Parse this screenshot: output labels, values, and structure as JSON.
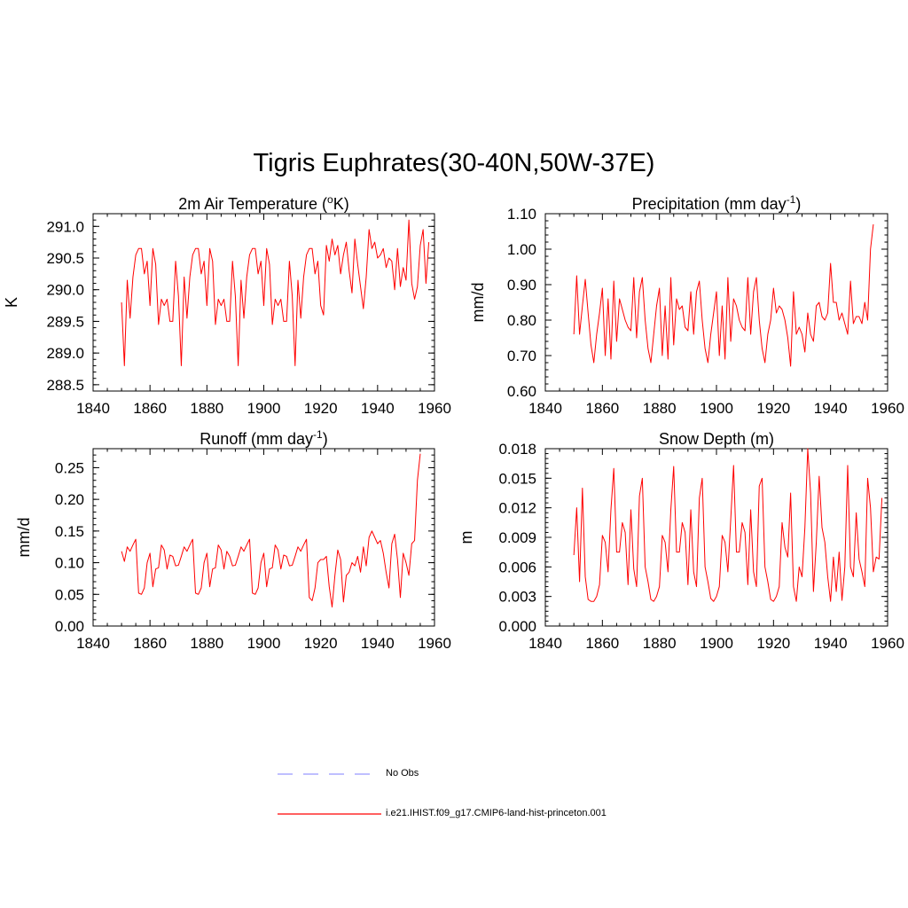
{
  "title": "Tigris Euphrates(30-40N,50W-37E)",
  "colors": {
    "model": "#ff0000",
    "obs": "#9999ff",
    "axis": "#000000"
  },
  "legend": [
    {
      "label": "No Obs",
      "style": "dashed",
      "color": "#9999ff"
    },
    {
      "label": "i.e21.IHIST.f09_g17.CMIP6-land-hist-princeton.001",
      "style": "solid",
      "color": "#ff0000"
    }
  ],
  "chart_data": [
    {
      "type": "line",
      "title": {
        "main": "2m Air Temperature (",
        "sup": "o",
        "tail": "K)"
      },
      "ylabel": "K",
      "xlim": [
        1840,
        1960
      ],
      "ylim": [
        288.4,
        291.2
      ],
      "x_ticks": [
        "1840",
        "1860",
        "1880",
        "1900",
        "1920",
        "1940",
        "1960"
      ],
      "x_tick_values": [
        1840,
        1860,
        1880,
        1900,
        1920,
        1940,
        1960
      ],
      "y_ticks": [
        "288.5",
        "289.0",
        "289.5",
        "290.0",
        "290.5",
        "291.0"
      ],
      "y_tick_values": [
        288.5,
        289.0,
        289.5,
        290.0,
        290.5,
        291.0
      ],
      "y_minor_step": 0.1,
      "x": {
        "start": 1850,
        "step": 1
      },
      "series": [
        {
          "color": "#ff0000",
          "values": [
            289.8,
            288.8,
            290.15,
            289.55,
            290.2,
            290.55,
            290.65,
            290.65,
            290.25,
            290.45,
            289.75,
            290.65,
            290.4,
            289.45,
            289.85,
            289.75,
            289.85,
            289.5,
            289.5,
            290.45,
            289.9,
            288.8,
            290.2,
            289.55,
            290.2,
            290.55,
            290.65,
            290.65,
            290.25,
            290.45,
            289.75,
            290.65,
            290.45,
            289.45,
            289.85,
            289.75,
            289.85,
            289.5,
            289.5,
            290.45,
            289.9,
            288.8,
            290.15,
            289.55,
            290.2,
            290.55,
            290.65,
            290.65,
            290.25,
            290.45,
            289.75,
            290.65,
            290.4,
            289.45,
            289.85,
            289.75,
            289.85,
            289.5,
            289.5,
            290.45,
            289.9,
            288.8,
            290.15,
            289.55,
            290.2,
            290.55,
            290.65,
            290.65,
            290.25,
            290.45,
            289.75,
            289.6,
            290.7,
            290.45,
            290.8,
            290.55,
            290.7,
            290.25,
            290.55,
            290.75,
            290.3,
            289.95,
            290.8,
            290.4,
            290.05,
            289.7,
            290.2,
            290.95,
            290.65,
            290.75,
            290.5,
            290.55,
            290.65,
            290.35,
            290.5,
            290.45,
            290.0,
            290.65,
            290.05,
            290.35,
            290.15,
            291.1,
            290.1,
            289.85,
            290.05,
            290.7,
            290.95,
            290.1,
            290.75
          ]
        }
      ]
    },
    {
      "type": "line",
      "title": {
        "main": "Precipitation (mm day",
        "sup": "-1",
        "tail": ")"
      },
      "ylabel": "mm/d",
      "xlim": [
        1840,
        1960
      ],
      "ylim": [
        0.6,
        1.1
      ],
      "x_ticks": [
        "1840",
        "1860",
        "1880",
        "1900",
        "1920",
        "1940",
        "1960"
      ],
      "x_tick_values": [
        1840,
        1860,
        1880,
        1900,
        1920,
        1940,
        1960
      ],
      "y_ticks": [
        "0.60",
        "0.70",
        "0.80",
        "0.90",
        "1.00",
        "1.10"
      ],
      "y_tick_values": [
        0.6,
        0.7,
        0.8,
        0.9,
        1.0,
        1.1
      ],
      "y_minor_step": 0.02,
      "x": {
        "start": 1850,
        "step": 1
      },
      "series": [
        {
          "color": "#ff0000",
          "values": [
            0.76,
            0.925,
            0.76,
            0.84,
            0.915,
            0.82,
            0.73,
            0.68,
            0.76,
            0.82,
            0.89,
            0.7,
            0.86,
            0.69,
            0.91,
            0.74,
            0.86,
            0.83,
            0.8,
            0.78,
            0.77,
            0.92,
            0.75,
            0.88,
            0.92,
            0.8,
            0.72,
            0.68,
            0.76,
            0.84,
            0.89,
            0.7,
            0.84,
            0.69,
            0.92,
            0.73,
            0.86,
            0.83,
            0.84,
            0.78,
            0.77,
            0.88,
            0.76,
            0.88,
            0.91,
            0.8,
            0.72,
            0.68,
            0.76,
            0.82,
            0.88,
            0.7,
            0.84,
            0.69,
            0.92,
            0.74,
            0.86,
            0.84,
            0.8,
            0.78,
            0.77,
            0.92,
            0.76,
            0.88,
            0.92,
            0.8,
            0.72,
            0.68,
            0.76,
            0.8,
            0.89,
            0.82,
            0.84,
            0.83,
            0.8,
            0.75,
            0.67,
            0.88,
            0.76,
            0.78,
            0.76,
            0.71,
            0.82,
            0.76,
            0.74,
            0.84,
            0.85,
            0.81,
            0.8,
            0.82,
            0.96,
            0.85,
            0.85,
            0.8,
            0.82,
            0.79,
            0.76,
            0.91,
            0.79,
            0.81,
            0.81,
            0.79,
            0.85,
            0.8,
            1.0,
            1.07
          ]
        }
      ]
    },
    {
      "type": "line",
      "title": {
        "main": "Runoff (mm day",
        "sup": "-1",
        "tail": ")"
      },
      "ylabel": "mm/d",
      "xlim": [
        1840,
        1960
      ],
      "ylim": [
        0.0,
        0.28
      ],
      "x_ticks": [
        "1840",
        "1860",
        "1880",
        "1900",
        "1920",
        "1940",
        "1960"
      ],
      "x_tick_values": [
        1840,
        1860,
        1880,
        1900,
        1920,
        1940,
        1960
      ],
      "y_ticks": [
        "0.00",
        "0.05",
        "0.10",
        "0.15",
        "0.20",
        "0.25"
      ],
      "y_tick_values": [
        0.0,
        0.05,
        0.1,
        0.15,
        0.2,
        0.25
      ],
      "y_minor_step": 0.01,
      "x": {
        "start": 1850,
        "step": 1
      },
      "series": [
        {
          "color": "#ff0000",
          "values": [
            0.118,
            0.102,
            0.125,
            0.118,
            0.128,
            0.137,
            0.052,
            0.05,
            0.06,
            0.1,
            0.115,
            0.062,
            0.09,
            0.092,
            0.128,
            0.12,
            0.09,
            0.112,
            0.11,
            0.095,
            0.096,
            0.11,
            0.125,
            0.118,
            0.128,
            0.137,
            0.052,
            0.05,
            0.06,
            0.1,
            0.115,
            0.062,
            0.09,
            0.092,
            0.128,
            0.12,
            0.09,
            0.118,
            0.11,
            0.095,
            0.096,
            0.11,
            0.125,
            0.118,
            0.128,
            0.137,
            0.052,
            0.05,
            0.06,
            0.1,
            0.115,
            0.062,
            0.09,
            0.092,
            0.128,
            0.12,
            0.09,
            0.112,
            0.11,
            0.095,
            0.096,
            0.11,
            0.125,
            0.118,
            0.128,
            0.137,
            0.045,
            0.04,
            0.06,
            0.1,
            0.105,
            0.105,
            0.11,
            0.062,
            0.03,
            0.08,
            0.12,
            0.105,
            0.038,
            0.08,
            0.085,
            0.1,
            0.095,
            0.11,
            0.085,
            0.125,
            0.095,
            0.14,
            0.15,
            0.14,
            0.13,
            0.135,
            0.115,
            0.085,
            0.06,
            0.13,
            0.145,
            0.105,
            0.045,
            0.115,
            0.1,
            0.08,
            0.13,
            0.135,
            0.23,
            0.272
          ]
        }
      ]
    },
    {
      "type": "line",
      "title": {
        "main": "Snow Depth (m)",
        "sup": "",
        "tail": ""
      },
      "ylabel": "m",
      "xlim": [
        1840,
        1960
      ],
      "ylim": [
        0.0,
        0.018
      ],
      "x_ticks": [
        "1840",
        "1860",
        "1880",
        "1900",
        "1920",
        "1940",
        "1960"
      ],
      "x_tick_values": [
        1840,
        1860,
        1880,
        1900,
        1920,
        1940,
        1960
      ],
      "y_ticks": [
        "0.000",
        "0.003",
        "0.006",
        "0.009",
        "0.012",
        "0.015",
        "0.018"
      ],
      "y_tick_values": [
        0.0,
        0.003,
        0.006,
        0.009,
        0.012,
        0.015,
        0.018
      ],
      "y_minor_step": 0.0005,
      "x": {
        "start": 1850,
        "step": 1
      },
      "series": [
        {
          "color": "#ff0000",
          "values": [
            0.0072,
            0.012,
            0.0045,
            0.014,
            0.005,
            0.0027,
            0.0025,
            0.0025,
            0.003,
            0.0042,
            0.0092,
            0.0085,
            0.0055,
            0.0118,
            0.016,
            0.0075,
            0.0075,
            0.0105,
            0.0095,
            0.0042,
            0.0118,
            0.0058,
            0.004,
            0.0132,
            0.015,
            0.006,
            0.0045,
            0.0027,
            0.0025,
            0.003,
            0.004,
            0.0092,
            0.0085,
            0.0055,
            0.0118,
            0.0162,
            0.0075,
            0.0075,
            0.0105,
            0.0095,
            0.0042,
            0.0118,
            0.0055,
            0.004,
            0.013,
            0.015,
            0.006,
            0.0045,
            0.0028,
            0.0025,
            0.003,
            0.004,
            0.0092,
            0.0085,
            0.0055,
            0.0108,
            0.0163,
            0.0075,
            0.0075,
            0.0105,
            0.0095,
            0.0042,
            0.0118,
            0.0055,
            0.004,
            0.0142,
            0.015,
            0.006,
            0.0045,
            0.0027,
            0.0025,
            0.003,
            0.004,
            0.0105,
            0.008,
            0.007,
            0.0135,
            0.004,
            0.0025,
            0.006,
            0.005,
            0.01,
            0.018,
            0.0135,
            0.0035,
            0.0085,
            0.0152,
            0.01,
            0.0085,
            0.005,
            0.0025,
            0.007,
            0.0035,
            0.0075,
            0.0026,
            0.006,
            0.0163,
            0.006,
            0.005,
            0.0115,
            0.0068,
            0.0055,
            0.004,
            0.015,
            0.012,
            0.0055,
            0.007,
            0.0068,
            0.013
          ]
        }
      ]
    }
  ]
}
